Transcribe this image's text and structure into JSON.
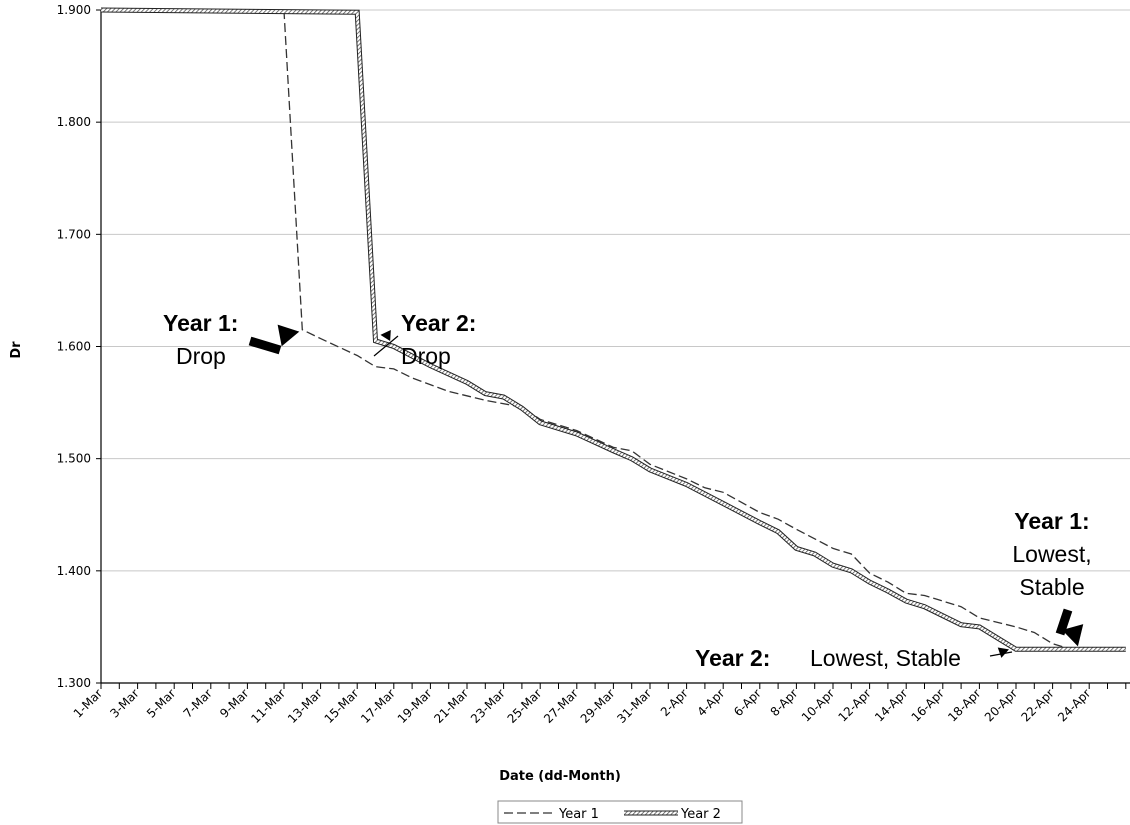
{
  "chart_data": {
    "type": "line",
    "xlabel": "Date (dd-Month)",
    "ylabel": "Dr",
    "ylim": [
      1.3,
      1.9
    ],
    "yticks": [
      "1.300",
      "1.400",
      "1.500",
      "1.600",
      "1.700",
      "1.800",
      "1.900"
    ],
    "grid": "horizontal",
    "legend_position": "bottom",
    "x_tick_labels": [
      "1-Mar",
      "3-Mar",
      "5-Mar",
      "7-Mar",
      "9-Mar",
      "11-Mar",
      "13-Mar",
      "15-Mar",
      "17-Mar",
      "19-Mar",
      "21-Mar",
      "23-Mar",
      "25-Mar",
      "27-Mar",
      "29-Mar",
      "31-Mar",
      "2-Apr",
      "4-Apr",
      "6-Apr",
      "8-Apr",
      "10-Apr",
      "12-Apr",
      "14-Apr",
      "16-Apr",
      "18-Apr",
      "20-Apr",
      "22-Apr",
      "24-Apr"
    ],
    "series": [
      {
        "name": "Year 1",
        "style": "dashed",
        "points": [
          [
            "1-Mar",
            1.901
          ],
          [
            "11-Mar",
            1.899
          ],
          [
            "12-Mar",
            1.615
          ],
          [
            "13-Mar",
            1.607
          ],
          [
            "15-Mar",
            1.592
          ],
          [
            "16-Mar",
            1.582
          ],
          [
            "17-Mar",
            1.58
          ],
          [
            "18-Mar",
            1.572
          ],
          [
            "20-Mar",
            1.56
          ],
          [
            "22-Mar",
            1.552
          ],
          [
            "24-Mar",
            1.546
          ],
          [
            "25-Mar",
            1.535
          ],
          [
            "27-Mar",
            1.525
          ],
          [
            "29-Mar",
            1.51
          ],
          [
            "30-Mar",
            1.507
          ],
          [
            "31-Mar",
            1.495
          ],
          [
            "2-Apr",
            1.482
          ],
          [
            "3-Apr",
            1.474
          ],
          [
            "4-Apr",
            1.47
          ],
          [
            "6-Apr",
            1.452
          ],
          [
            "7-Apr",
            1.446
          ],
          [
            "8-Apr",
            1.437
          ],
          [
            "10-Apr",
            1.42
          ],
          [
            "11-Apr",
            1.415
          ],
          [
            "12-Apr",
            1.398
          ],
          [
            "13-Apr",
            1.39
          ],
          [
            "14-Apr",
            1.38
          ],
          [
            "15-Apr",
            1.378
          ],
          [
            "17-Apr",
            1.368
          ],
          [
            "18-Apr",
            1.358
          ],
          [
            "20-Apr",
            1.35
          ],
          [
            "21-Apr",
            1.345
          ],
          [
            "22-Apr",
            1.335
          ],
          [
            "23-Apr",
            1.33
          ],
          [
            "26-Apr",
            1.33
          ]
        ]
      },
      {
        "name": "Year 2",
        "style": "hatched",
        "points": [
          [
            "1-Mar",
            1.9
          ],
          [
            "15-Mar",
            1.898
          ],
          [
            "16-Mar",
            1.605
          ],
          [
            "17-Mar",
            1.6
          ],
          [
            "19-Mar",
            1.583
          ],
          [
            "21-Mar",
            1.568
          ],
          [
            "22-Mar",
            1.558
          ],
          [
            "23-Mar",
            1.555
          ],
          [
            "24-Mar",
            1.545
          ],
          [
            "25-Mar",
            1.532
          ],
          [
            "27-Mar",
            1.522
          ],
          [
            "29-Mar",
            1.507
          ],
          [
            "30-Mar",
            1.5
          ],
          [
            "31-Mar",
            1.49
          ],
          [
            "2-Apr",
            1.477
          ],
          [
            "4-Apr",
            1.46
          ],
          [
            "6-Apr",
            1.443
          ],
          [
            "7-Apr",
            1.435
          ],
          [
            "8-Apr",
            1.42
          ],
          [
            "9-Apr",
            1.415
          ],
          [
            "10-Apr",
            1.405
          ],
          [
            "11-Apr",
            1.4
          ],
          [
            "12-Apr",
            1.39
          ],
          [
            "13-Apr",
            1.382
          ],
          [
            "14-Apr",
            1.373
          ],
          [
            "15-Apr",
            1.368
          ],
          [
            "16-Apr",
            1.36
          ],
          [
            "17-Apr",
            1.352
          ],
          [
            "18-Apr",
            1.35
          ],
          [
            "19-Apr",
            1.34
          ],
          [
            "20-Apr",
            1.33
          ],
          [
            "26-Apr",
            1.33
          ]
        ]
      }
    ],
    "annotations": [
      {
        "bold": "Year 1:",
        "text": "Drop",
        "target": [
          "12-Mar",
          1.615
        ],
        "arrow": "thick"
      },
      {
        "bold": "Year 2:",
        "text": "Drop",
        "target": [
          "16-Mar",
          1.605
        ],
        "arrow": "thin"
      },
      {
        "bold": "Year 1:",
        "text": "Lowest,",
        "text2": "Stable",
        "target": [
          "23-Apr",
          1.33
        ],
        "arrow": "thick"
      },
      {
        "bold": "Year 2:",
        "text": "Lowest, Stable",
        "target": [
          "20-Apr",
          1.33
        ],
        "arrow": "thin"
      }
    ]
  }
}
